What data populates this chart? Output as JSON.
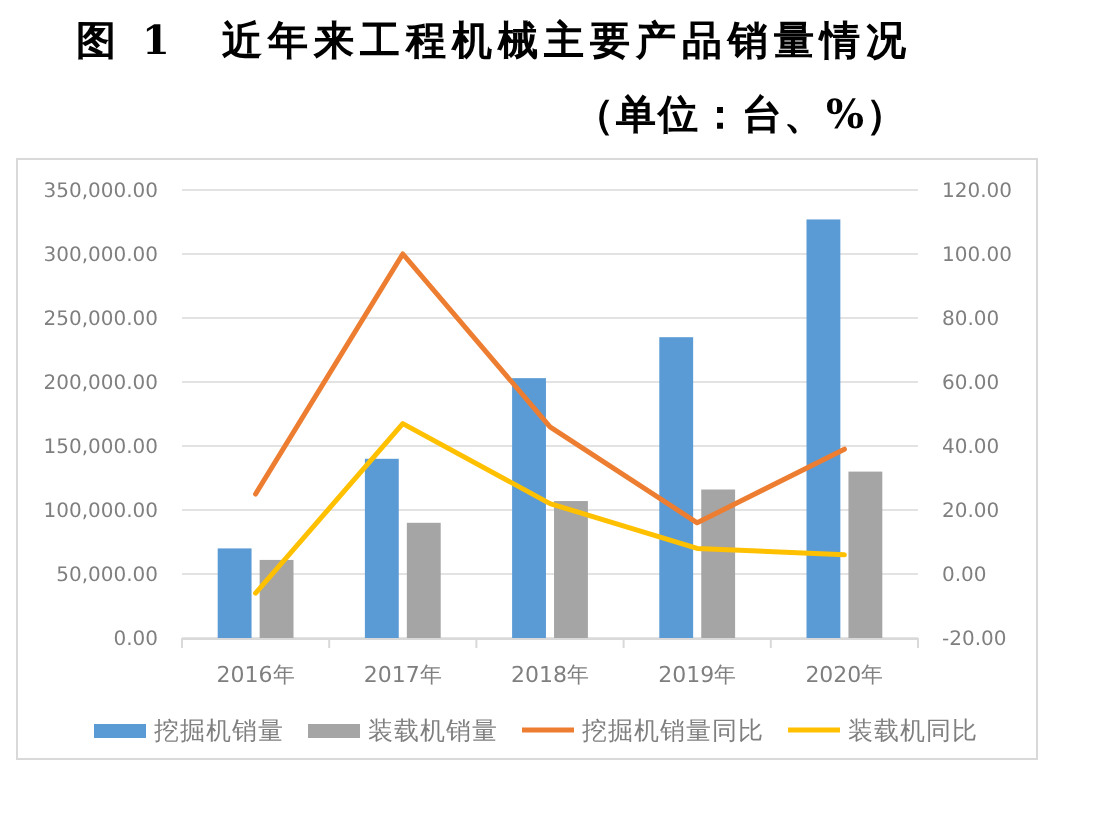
{
  "chart_data": {
    "type": "bar",
    "title": "图 1　近年来工程机械主要产品销量情况",
    "subtitle": "（单位：台、%）",
    "categories": [
      "2016年",
      "2017年",
      "2018年",
      "2019年",
      "2020年"
    ],
    "series": [
      {
        "name": "挖掘机销量",
        "color": "#5b9bd5",
        "values": [
          70000,
          140000,
          203000,
          235000,
          327000
        ]
      },
      {
        "name": "装载机销量",
        "color": "#a5a5a5",
        "values": [
          61000,
          90000,
          107000,
          116000,
          130000
        ]
      },
      {
        "name": "挖掘机销量同比",
        "type": "line",
        "axis": "y2",
        "color": "#ed7d31",
        "values": [
          25,
          100,
          46,
          16,
          39
        ]
      },
      {
        "name": "装载机同比",
        "type": "line",
        "axis": "y2",
        "color": "#ffc000",
        "values": [
          -6,
          47,
          22,
          8,
          6
        ]
      }
    ],
    "ylim": [
      0,
      350000
    ],
    "yticks": [
      {
        "value": 0,
        "label": "0.00"
      },
      {
        "value": 50000,
        "label": "50,000.00"
      },
      {
        "value": 100000,
        "label": "100,000.00"
      },
      {
        "value": 150000,
        "label": "150,000.00"
      },
      {
        "value": 200000,
        "label": "200,000.00"
      },
      {
        "value": 250000,
        "label": "250,000.00"
      },
      {
        "value": 300000,
        "label": "300,000.00"
      },
      {
        "value": 350000,
        "label": "350,000.00"
      }
    ],
    "y2lim": [
      -20,
      120
    ],
    "y2ticks": [
      {
        "value": -20,
        "label": "-20.00"
      },
      {
        "value": 0,
        "label": "0.00"
      },
      {
        "value": 20,
        "label": "20.00"
      },
      {
        "value": 40,
        "label": "40.00"
      },
      {
        "value": 60,
        "label": "60.00"
      },
      {
        "value": 80,
        "label": "80.00"
      },
      {
        "value": 100,
        "label": "100.00"
      },
      {
        "value": 120,
        "label": "120.00"
      }
    ],
    "grid": "y",
    "legend": "bottom"
  }
}
